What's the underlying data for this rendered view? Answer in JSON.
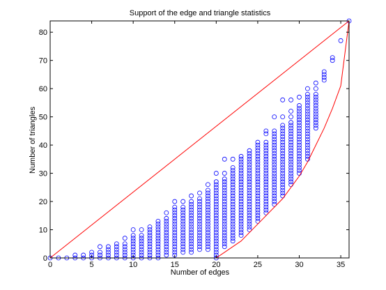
{
  "chart_data": {
    "type": "scatter",
    "title": "Support of the edge and triangle statistics",
    "xlabel": "Number of edges",
    "ylabel": "Number of triangles",
    "xlim": [
      0,
      36
    ],
    "ylim": [
      0,
      84
    ],
    "xticks": [
      0,
      5,
      10,
      15,
      20,
      25,
      30,
      35
    ],
    "yticks": [
      0,
      10,
      20,
      30,
      40,
      50,
      60,
      70,
      80
    ],
    "grid": false,
    "marker": "open-circle",
    "marker_color": "#0000ff",
    "line_color": "#ff0000",
    "columns": [
      {
        "x": 0,
        "y": [
          0
        ]
      },
      {
        "x": 1,
        "y": [
          0
        ]
      },
      {
        "x": 2,
        "y": [
          0
        ]
      },
      {
        "x": 3,
        "y": [
          0,
          1
        ]
      },
      {
        "x": 4,
        "y": [
          0,
          1
        ]
      },
      {
        "x": 5,
        "y": [
          0,
          1,
          2
        ]
      },
      {
        "x": 6,
        "y": [
          0,
          1,
          2,
          4
        ]
      },
      {
        "x": 7,
        "y": [
          0,
          1,
          2,
          3,
          4
        ]
      },
      {
        "x": 8,
        "y": [
          0,
          1,
          2,
          3,
          4,
          5
        ]
      },
      {
        "x": 9,
        "y": [
          0,
          1,
          2,
          3,
          4,
          5,
          7
        ]
      },
      {
        "x": 10,
        "y": [
          0,
          1,
          2,
          3,
          4,
          5,
          6,
          7,
          8,
          10
        ]
      },
      {
        "x": 11,
        "y": [
          0,
          1,
          2,
          3,
          4,
          5,
          6,
          7,
          8,
          10
        ]
      },
      {
        "x": 12,
        "y": [
          0,
          1,
          2,
          3,
          4,
          5,
          6,
          7,
          8,
          9,
          10,
          11
        ]
      },
      {
        "x": 13,
        "y": [
          0,
          1,
          2,
          3,
          4,
          5,
          6,
          7,
          8,
          9,
          10,
          11,
          12,
          13
        ]
      },
      {
        "x": 14,
        "y": [
          1,
          2,
          3,
          4,
          5,
          6,
          7,
          8,
          9,
          10,
          11,
          12,
          13,
          14,
          16
        ]
      },
      {
        "x": 15,
        "y": [
          1,
          2,
          3,
          4,
          5,
          6,
          7,
          8,
          9,
          10,
          11,
          12,
          13,
          14,
          15,
          16,
          17,
          18,
          20
        ]
      },
      {
        "x": 16,
        "y": [
          2,
          3,
          4,
          5,
          6,
          7,
          8,
          9,
          10,
          11,
          12,
          13,
          14,
          15,
          16,
          17,
          18,
          20
        ]
      },
      {
        "x": 17,
        "y": [
          2,
          3,
          4,
          5,
          6,
          7,
          8,
          9,
          10,
          11,
          12,
          13,
          14,
          15,
          16,
          17,
          18,
          19,
          20,
          22
        ]
      },
      {
        "x": 18,
        "y": [
          3,
          4,
          5,
          6,
          7,
          8,
          9,
          10,
          11,
          12,
          13,
          14,
          15,
          16,
          17,
          18,
          19,
          20,
          21,
          23
        ]
      },
      {
        "x": 19,
        "y": [
          3,
          4,
          5,
          6,
          7,
          8,
          9,
          10,
          11,
          12,
          13,
          14,
          15,
          16,
          17,
          18,
          19,
          20,
          21,
          22,
          23,
          24,
          26
        ]
      },
      {
        "x": 20,
        "y": [
          0,
          1,
          2,
          3,
          4,
          5,
          6,
          7,
          8,
          9,
          10,
          11,
          12,
          13,
          14,
          15,
          16,
          17,
          18,
          19,
          20,
          21,
          22,
          23,
          24,
          25,
          26,
          27,
          30
        ]
      },
      {
        "x": 21,
        "y": [
          4,
          5,
          6,
          7,
          8,
          9,
          10,
          11,
          12,
          13,
          14,
          15,
          16,
          17,
          18,
          19,
          20,
          21,
          22,
          23,
          24,
          25,
          26,
          27,
          28,
          30,
          35
        ]
      },
      {
        "x": 22,
        "y": [
          6,
          7,
          8,
          9,
          10,
          11,
          12,
          13,
          14,
          15,
          16,
          17,
          18,
          19,
          20,
          21,
          22,
          23,
          24,
          25,
          26,
          27,
          28,
          29,
          30,
          31,
          32,
          35
        ]
      },
      {
        "x": 23,
        "y": [
          8,
          9,
          10,
          11,
          12,
          13,
          14,
          15,
          16,
          17,
          18,
          19,
          20,
          21,
          22,
          23,
          24,
          25,
          26,
          27,
          28,
          29,
          30,
          31,
          32,
          33,
          34,
          35,
          36
        ]
      },
      {
        "x": 24,
        "y": [
          10,
          11,
          12,
          13,
          14,
          15,
          16,
          17,
          18,
          19,
          20,
          21,
          22,
          23,
          24,
          25,
          26,
          27,
          28,
          29,
          30,
          31,
          32,
          33,
          34,
          35,
          36,
          37,
          38
        ]
      },
      {
        "x": 25,
        "y": [
          13,
          14,
          15,
          16,
          17,
          18,
          19,
          20,
          21,
          22,
          23,
          24,
          25,
          26,
          27,
          28,
          29,
          30,
          31,
          32,
          33,
          34,
          35,
          36,
          37,
          38,
          39,
          40,
          41
        ]
      },
      {
        "x": 26,
        "y": [
          16,
          17,
          18,
          19,
          20,
          21,
          22,
          23,
          24,
          25,
          26,
          27,
          28,
          29,
          30,
          31,
          32,
          33,
          34,
          35,
          36,
          37,
          38,
          39,
          40,
          41,
          44,
          45
        ]
      },
      {
        "x": 27,
        "y": [
          19,
          20,
          21,
          22,
          23,
          24,
          25,
          26,
          27,
          28,
          29,
          30,
          31,
          32,
          33,
          34,
          35,
          36,
          37,
          38,
          39,
          40,
          41,
          42,
          43,
          44,
          45,
          50
        ]
      },
      {
        "x": 28,
        "y": [
          22,
          23,
          24,
          25,
          26,
          27,
          28,
          29,
          30,
          31,
          32,
          33,
          34,
          35,
          36,
          37,
          38,
          39,
          40,
          41,
          42,
          43,
          44,
          45,
          46,
          47,
          50,
          56
        ]
      },
      {
        "x": 29,
        "y": [
          26,
          27,
          28,
          29,
          30,
          31,
          32,
          33,
          34,
          35,
          36,
          37,
          38,
          39,
          40,
          41,
          42,
          43,
          44,
          45,
          46,
          47,
          48,
          50,
          52,
          56
        ]
      },
      {
        "x": 30,
        "y": [
          30,
          31,
          32,
          33,
          34,
          35,
          36,
          37,
          38,
          39,
          40,
          41,
          42,
          43,
          44,
          45,
          46,
          47,
          48,
          49,
          50,
          51,
          52,
          53,
          54,
          57
        ]
      },
      {
        "x": 31,
        "y": [
          35,
          36,
          37,
          38,
          39,
          40,
          41,
          42,
          43,
          44,
          45,
          46,
          47,
          48,
          49,
          50,
          51,
          52,
          53,
          54,
          55,
          56,
          57,
          58,
          60
        ]
      },
      {
        "x": 32,
        "y": [
          46,
          47,
          48,
          49,
          50,
          51,
          52,
          53,
          54,
          55,
          56,
          57,
          58,
          60,
          62
        ]
      },
      {
        "x": 33,
        "y": [
          63,
          64,
          65,
          66
        ]
      },
      {
        "x": 34,
        "y": [
          70,
          71
        ]
      },
      {
        "x": 35,
        "y": [
          77
        ]
      },
      {
        "x": 36,
        "y": [
          84
        ]
      }
    ],
    "upper_bound_line": [
      [
        0,
        0
      ],
      [
        36,
        84
      ]
    ],
    "lower_bound_curve": [
      [
        0,
        0
      ],
      [
        20,
        0
      ],
      [
        21,
        2
      ],
      [
        22,
        4
      ],
      [
        23,
        6
      ],
      [
        24,
        9
      ],
      [
        25,
        12
      ],
      [
        26,
        15
      ],
      [
        27,
        18
      ],
      [
        28,
        21
      ],
      [
        29,
        25
      ],
      [
        30,
        29
      ],
      [
        31,
        34
      ],
      [
        32,
        40
      ],
      [
        33,
        46
      ],
      [
        34,
        53
      ],
      [
        35,
        61
      ],
      [
        36,
        84
      ]
    ]
  }
}
